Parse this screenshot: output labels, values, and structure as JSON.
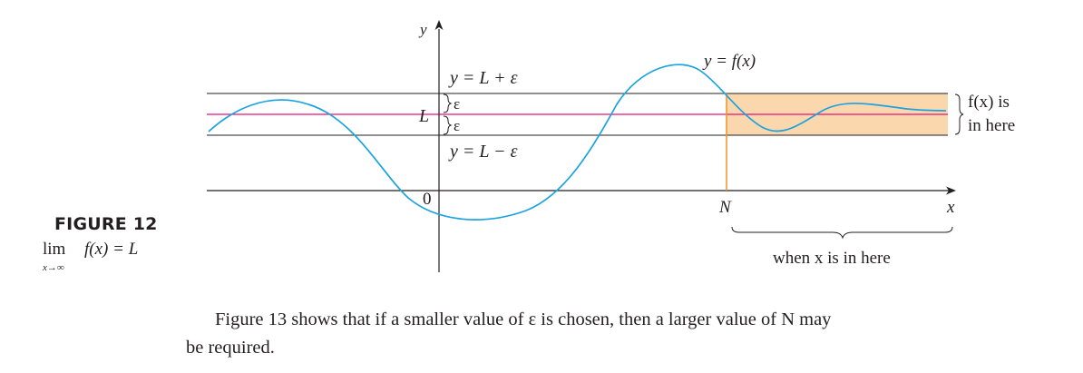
{
  "figure": {
    "title": "FIGURE 12",
    "caption_lim": "lim",
    "caption_rest": "f(x) = L",
    "caption_sub": "x→∞",
    "labels": {
      "y_axis": "y",
      "x_axis": "x",
      "origin": "0",
      "L": "L",
      "N": "N",
      "eps_upper": "ε",
      "eps_lower": "ε",
      "upper_line": "y = L + ε",
      "lower_line": "y = L − ε",
      "curve": "y = f(x)",
      "fx_is_line1": "f(x) is",
      "fx_is_line2": "in here",
      "when_x": "when x is in here"
    },
    "colors": {
      "curve": "#1aa3e0",
      "limit_line": "#e4137a",
      "band_fill": "#fbd7ad",
      "n_marker": "#f29224",
      "axis": "#231f20"
    }
  },
  "paragraph": {
    "line1": "Figure 13 shows that if a smaller value of ε is chosen, then a larger value of N may",
    "line2": "be required."
  }
}
